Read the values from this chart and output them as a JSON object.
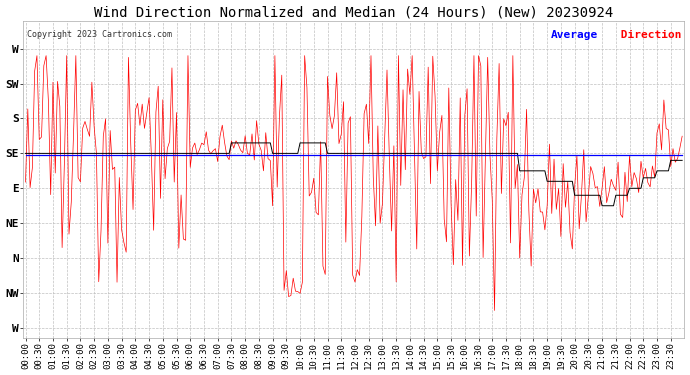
{
  "title": "Wind Direction Normalized and Median (24 Hours) (New) 20230924",
  "copyright": "Copyright 2023 Cartronics.com",
  "legend_blue": "Average",
  "legend_red": " Direction",
  "ytick_labels": [
    "W",
    "SW",
    "S",
    "SE",
    "E",
    "NE",
    "N",
    "NW",
    "W"
  ],
  "ytick_values": [
    8,
    7,
    6,
    5,
    4,
    3,
    2,
    1,
    0
  ],
  "ylim": [
    -0.3,
    8.8
  ],
  "background_color": "#ffffff",
  "grid_color": "#c0c0c0",
  "plot_bg": "#ffffff",
  "red_color": "#ff0000",
  "blue_color": "#0000ff",
  "black_color": "#000000",
  "title_fontsize": 10,
  "tick_fontsize": 6.5,
  "ytick_fontsize": 8,
  "figwidth": 6.9,
  "figheight": 3.75,
  "dpi": 100
}
